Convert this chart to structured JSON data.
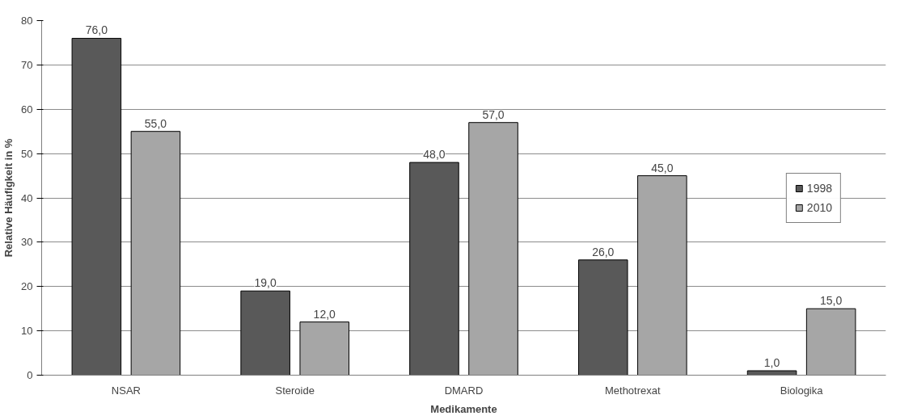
{
  "chart_data": {
    "type": "bar",
    "xlabel": "Medikamente",
    "ylabel": "Relative Häufigkeit in %",
    "categories": [
      "NSAR",
      "Steroide",
      "DMARD",
      "Methotrexat",
      "Biologika"
    ],
    "series": [
      {
        "name": "1998",
        "color": "#595959",
        "values": [
          76,
          19,
          48,
          26,
          1
        ],
        "value_labels": [
          "76,0",
          "19,0",
          "48,0",
          "26,0",
          "1,0"
        ]
      },
      {
        "name": "2010",
        "color": "#a6a6a6",
        "values": [
          55,
          12,
          57,
          45,
          15
        ],
        "value_labels": [
          "55,0",
          "12,0",
          "57,0",
          "45,0",
          "15,0"
        ]
      }
    ],
    "ylim": [
      0,
      80
    ],
    "yticks": [
      0,
      10,
      20,
      30,
      40,
      50,
      60,
      70,
      80
    ],
    "grid": "y",
    "legend": "right"
  }
}
